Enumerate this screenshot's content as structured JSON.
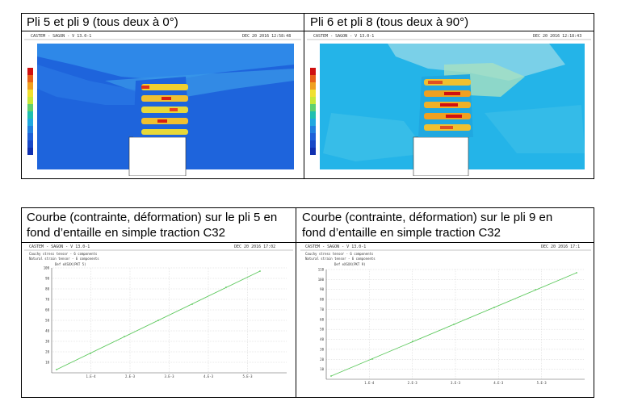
{
  "top_table": {
    "left_title": "Pli 5 et pli 9 (tous deux à 0°)",
    "right_title": "Pli 6 et pli 8 (tous deux à 90°)"
  },
  "bottom_table": {
    "left_title_line1": "Courbe (contrainte, déformation) sur le pli 5 en",
    "left_title_line2": "fond d’entaille en simple traction C32",
    "right_title_line1": "Courbe (contrainte, déformation) sur le pli 9 en",
    "right_title_line2": "fond d’entaille en simple traction C32"
  },
  "plot_left_top": {
    "app_header": "CASTEM - SAGON - V 13.0-1",
    "date": "DEC 20 2016 12:58:48",
    "colors": {
      "background": "#1e64dc",
      "fringe": "#2e88e8"
    }
  },
  "plot_right_top": {
    "app_header": "CASTEM - SAGON - V 13.0-1",
    "date": "DEC 20 2016 12:18:43",
    "colors": {
      "background": "#24b4e8",
      "fringe": "#7ad0e8"
    }
  },
  "plot_left_bottom": {
    "app_header": "CASTEM - SAGON - V 13.0-1",
    "date": "DEC 20 2016 17:02",
    "legend1": "Cauchy stress tensor - 6 components",
    "legend2": "Natural strain tensor - 6 components",
    "curve_label": "Def eXSXX(PKT 5)",
    "yticks": [
      "100",
      "90",
      "80",
      "70",
      "60",
      "50",
      "40",
      "30",
      "20",
      "10"
    ],
    "xticks": [
      "1.E-4",
      "2.E-3",
      "3.E-3",
      "4.E-3",
      "5.E-3"
    ],
    "line_color": "#5cc85c"
  },
  "plot_right_bottom": {
    "app_header": "CASTEM - SAGON - V 13.0-1",
    "date": "DEC 20 2016 17:1",
    "legend1": "Cauchy stress tensor - 6 components",
    "legend2": "Natural strain tensor - 6 components",
    "curve_label": "Def eXSXX(PKT 9)",
    "yticks": [
      "110",
      "100",
      "90",
      "80",
      "70",
      "60",
      "50",
      "40",
      "30",
      "20",
      "10"
    ],
    "xticks": [
      "1.E-4",
      "2.E-3",
      "3.E-3",
      "4.E-3",
      "5.E-3"
    ],
    "line_color": "#5cc85c"
  }
}
